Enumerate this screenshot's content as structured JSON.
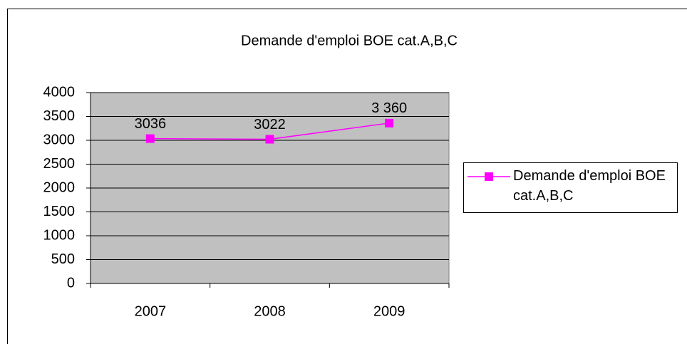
{
  "chart_data": {
    "type": "line",
    "title": "Demande d'emploi BOE cat.A,B,C",
    "categories": [
      "2007",
      "2008",
      "2009"
    ],
    "series": [
      {
        "name": "Demande d'emploi BOE cat.A,B,C",
        "color": "#ff00ff",
        "values": [
          3036,
          3022,
          3360
        ],
        "value_labels": [
          "3036",
          "3022",
          "3 360"
        ]
      }
    ],
    "ylim": [
      0,
      4000
    ],
    "yticks": [
      0,
      500,
      1000,
      1500,
      2000,
      2500,
      3000,
      3500,
      4000
    ],
    "grid": true,
    "legend": "right",
    "plot_background": "#c0c0c0"
  }
}
